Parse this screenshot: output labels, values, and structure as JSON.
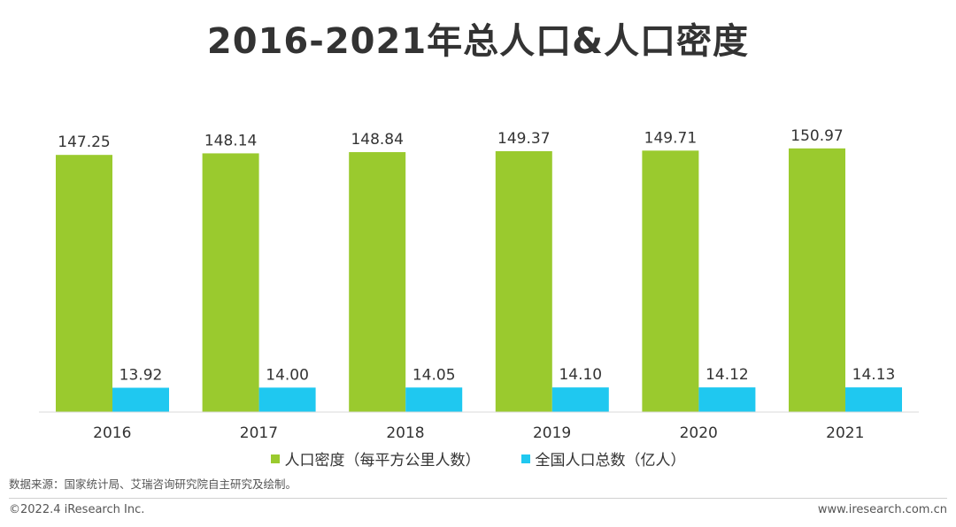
{
  "chart_data": {
    "type": "bar",
    "title": "2016-2021年总人口&人口密度",
    "categories": [
      "2016",
      "2017",
      "2018",
      "2019",
      "2020",
      "2021"
    ],
    "series": [
      {
        "name": "人口密度（每平方公里人数）",
        "color": "#9ACA2E",
        "values": [
          147.25,
          148.14,
          148.84,
          149.37,
          149.71,
          150.97
        ],
        "labels": [
          "147.25",
          "148.14",
          "148.84",
          "149.37",
          "149.71",
          "150.97"
        ]
      },
      {
        "name": "全国人口总数（亿人）",
        "color": "#1FC8F0",
        "values": [
          13.92,
          14.0,
          14.05,
          14.1,
          14.12,
          14.13
        ],
        "labels": [
          "13.92",
          "14.00",
          "14.05",
          "14.10",
          "14.12",
          "14.13"
        ]
      }
    ],
    "xlabel": "",
    "ylabel": "",
    "ylim": [
      0,
      160
    ],
    "grid": false,
    "legend": "bottom-center"
  },
  "source": "数据来源：国家统计局、艾瑞咨询研究院自主研究及绘制。",
  "footer": {
    "copyright": "©2022.4 iResearch Inc.",
    "website": "www.iresearch.com.cn"
  }
}
